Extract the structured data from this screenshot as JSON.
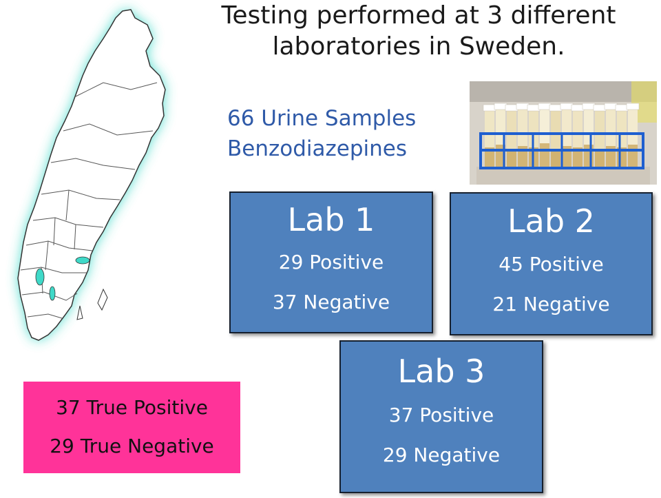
{
  "title": {
    "line1": "Testing performed at 3 different",
    "line2": "laboratories in Sweden."
  },
  "subtitle": {
    "line1": "66 Urine Samples",
    "line2": "Benzodiazepines"
  },
  "labs": [
    {
      "name": "Lab 1",
      "positive": "29 Positive",
      "negative": "37 Negative"
    },
    {
      "name": "Lab 2",
      "positive": "45 Positive",
      "negative": "21 Negative"
    },
    {
      "name": "Lab 3",
      "positive": "37 Positive",
      "negative": "29 Negative"
    }
  ],
  "truth": {
    "positive": "37 True Positive",
    "negative": "29 True Negative"
  },
  "colors": {
    "lab_box": "#4f81bd",
    "truth_box": "#ff3399",
    "subtitle": "#2f5aa8",
    "map_glow": "#3fd9c8",
    "rack": "#1e5fd0"
  },
  "images": {
    "map": "sweden-map",
    "photo": "urine-sample-tubes-in-blue-rack"
  }
}
